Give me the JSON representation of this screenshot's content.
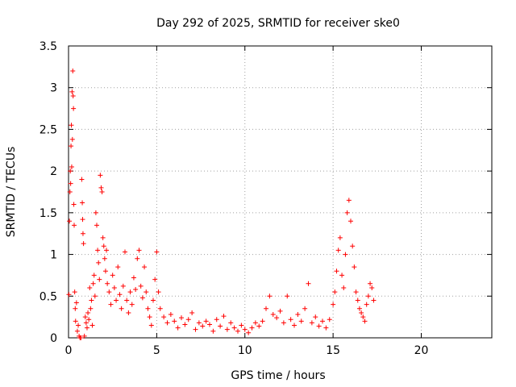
{
  "chart_data": {
    "type": "scatter",
    "title": "Day 292 of 2025, SRMTID for receiver ske0",
    "xlabel": "GPS time / hours",
    "ylabel": "SRMTID / TECUs",
    "xlim": [
      0,
      24
    ],
    "ylim": [
      0,
      3.5
    ],
    "x_ticks": [
      0,
      5,
      10,
      15,
      20
    ],
    "x_tick_labels": [
      "0",
      "5",
      "10",
      "15",
      "20"
    ],
    "y_ticks": [
      0,
      0.5,
      1,
      1.5,
      2,
      2.5,
      3,
      3.5
    ],
    "y_tick_labels": [
      "0",
      "0.5",
      "1",
      "1.5",
      "2",
      "2.5",
      "3",
      "3.5"
    ],
    "grid": true,
    "marker": "+",
    "color": "#ff0000",
    "series": [
      {
        "name": "SRMTID",
        "points": [
          [
            0.02,
            0.52
          ],
          [
            0.05,
            1.4
          ],
          [
            0.08,
            1.75
          ],
          [
            0.1,
            2.0
          ],
          [
            0.12,
            1.85
          ],
          [
            0.14,
            2.3
          ],
          [
            0.16,
            2.55
          ],
          [
            0.18,
            2.05
          ],
          [
            0.2,
            2.95
          ],
          [
            0.22,
            2.38
          ],
          [
            0.24,
            3.2
          ],
          [
            0.26,
            2.9
          ],
          [
            0.28,
            2.75
          ],
          [
            0.3,
            1.6
          ],
          [
            0.32,
            1.35
          ],
          [
            0.35,
            0.55
          ],
          [
            0.38,
            0.35
          ],
          [
            0.4,
            0.2
          ],
          [
            0.45,
            0.42
          ],
          [
            0.5,
            0.08
          ],
          [
            0.55,
            0.15
          ],
          [
            0.6,
            0.02
          ],
          [
            0.65,
            0.0
          ],
          [
            0.7,
            0.0
          ],
          [
            0.75,
            1.9
          ],
          [
            0.78,
            1.62
          ],
          [
            0.8,
            1.42
          ],
          [
            0.82,
            1.25
          ],
          [
            0.85,
            1.13
          ],
          [
            0.9,
            0.02
          ],
          [
            0.95,
            0.25
          ],
          [
            1.0,
            0.18
          ],
          [
            1.05,
            0.12
          ],
          [
            1.1,
            0.3
          ],
          [
            1.15,
            0.22
          ],
          [
            1.2,
            0.6
          ],
          [
            1.25,
            0.35
          ],
          [
            1.3,
            0.45
          ],
          [
            1.35,
            0.15
          ],
          [
            1.4,
            0.65
          ],
          [
            1.45,
            0.75
          ],
          [
            1.5,
            0.5
          ],
          [
            1.55,
            1.5
          ],
          [
            1.6,
            1.35
          ],
          [
            1.65,
            1.05
          ],
          [
            1.7,
            0.9
          ],
          [
            1.75,
            0.7
          ],
          [
            1.8,
            1.95
          ],
          [
            1.85,
            1.8
          ],
          [
            1.9,
            1.75
          ],
          [
            1.95,
            1.2
          ],
          [
            2.0,
            1.1
          ],
          [
            2.05,
            0.95
          ],
          [
            2.1,
            0.8
          ],
          [
            2.15,
            1.05
          ],
          [
            2.2,
            0.65
          ],
          [
            2.3,
            0.55
          ],
          [
            2.4,
            0.4
          ],
          [
            2.5,
            0.75
          ],
          [
            2.6,
            0.6
          ],
          [
            2.7,
            0.45
          ],
          [
            2.8,
            0.85
          ],
          [
            2.9,
            0.52
          ],
          [
            3.0,
            0.35
          ],
          [
            3.1,
            0.62
          ],
          [
            3.2,
            1.03
          ],
          [
            3.3,
            0.45
          ],
          [
            3.4,
            0.3
          ],
          [
            3.5,
            0.55
          ],
          [
            3.6,
            0.4
          ],
          [
            3.7,
            0.72
          ],
          [
            3.8,
            0.58
          ],
          [
            3.9,
            0.95
          ],
          [
            4.0,
            1.05
          ],
          [
            4.1,
            0.62
          ],
          [
            4.2,
            0.48
          ],
          [
            4.3,
            0.85
          ],
          [
            4.4,
            0.55
          ],
          [
            4.5,
            0.35
          ],
          [
            4.6,
            0.25
          ],
          [
            4.7,
            0.15
          ],
          [
            4.8,
            0.45
          ],
          [
            4.9,
            0.7
          ],
          [
            5.0,
            1.03
          ],
          [
            5.1,
            0.55
          ],
          [
            5.2,
            0.35
          ],
          [
            5.4,
            0.25
          ],
          [
            5.6,
            0.18
          ],
          [
            5.8,
            0.28
          ],
          [
            6.0,
            0.2
          ],
          [
            6.2,
            0.12
          ],
          [
            6.4,
            0.24
          ],
          [
            6.6,
            0.16
          ],
          [
            6.8,
            0.22
          ],
          [
            7.0,
            0.3
          ],
          [
            7.2,
            0.1
          ],
          [
            7.4,
            0.18
          ],
          [
            7.6,
            0.14
          ],
          [
            7.8,
            0.2
          ],
          [
            8.0,
            0.16
          ],
          [
            8.2,
            0.08
          ],
          [
            8.4,
            0.22
          ],
          [
            8.6,
            0.14
          ],
          [
            8.8,
            0.26
          ],
          [
            9.0,
            0.1
          ],
          [
            9.2,
            0.18
          ],
          [
            9.4,
            0.12
          ],
          [
            9.6,
            0.08
          ],
          [
            9.8,
            0.15
          ],
          [
            10.0,
            0.1
          ],
          [
            10.2,
            0.06
          ],
          [
            10.4,
            0.12
          ],
          [
            10.6,
            0.18
          ],
          [
            10.8,
            0.14
          ],
          [
            11.0,
            0.2
          ],
          [
            11.2,
            0.35
          ],
          [
            11.4,
            0.5
          ],
          [
            11.6,
            0.28
          ],
          [
            11.8,
            0.24
          ],
          [
            12.0,
            0.32
          ],
          [
            12.2,
            0.18
          ],
          [
            12.4,
            0.5
          ],
          [
            12.6,
            0.22
          ],
          [
            12.8,
            0.15
          ],
          [
            13.0,
            0.28
          ],
          [
            13.2,
            0.2
          ],
          [
            13.4,
            0.35
          ],
          [
            13.6,
            0.65
          ],
          [
            13.8,
            0.18
          ],
          [
            14.0,
            0.25
          ],
          [
            14.2,
            0.14
          ],
          [
            14.4,
            0.2
          ],
          [
            14.6,
            0.12
          ],
          [
            14.8,
            0.22
          ],
          [
            15.0,
            0.4
          ],
          [
            15.1,
            0.55
          ],
          [
            15.2,
            0.8
          ],
          [
            15.3,
            1.05
          ],
          [
            15.4,
            1.2
          ],
          [
            15.5,
            0.75
          ],
          [
            15.6,
            0.6
          ],
          [
            15.7,
            1.0
          ],
          [
            15.8,
            1.5
          ],
          [
            15.9,
            1.65
          ],
          [
            16.0,
            1.4
          ],
          [
            16.1,
            1.1
          ],
          [
            16.2,
            0.85
          ],
          [
            16.3,
            0.55
          ],
          [
            16.4,
            0.45
          ],
          [
            16.5,
            0.35
          ],
          [
            16.6,
            0.3
          ],
          [
            16.7,
            0.25
          ],
          [
            16.8,
            0.2
          ],
          [
            16.9,
            0.4
          ],
          [
            17.0,
            0.5
          ],
          [
            17.1,
            0.65
          ],
          [
            17.2,
            0.6
          ],
          [
            17.3,
            0.45
          ]
        ]
      }
    ]
  }
}
